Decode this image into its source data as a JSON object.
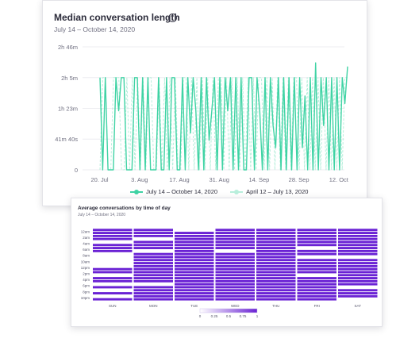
{
  "main_card": {
    "title": "Median conversation length",
    "subtitle": "July 14 – October 14, 2020",
    "info_icon": "info-icon"
  },
  "heat_card": {
    "title": "Average conversations by time of day",
    "subtitle": "July 14 – October 14, 2020"
  },
  "chart_data": [
    {
      "type": "line",
      "title": "Median conversation length",
      "subtitle": "July 14 – October 14, 2020",
      "x_tick_labels": [
        "20. Jul",
        "3. Aug",
        "17. Aug",
        "31. Aug",
        "14. Sep",
        "28. Sep",
        "12. Oct"
      ],
      "y_tick_labels": [
        "0",
        "41m 40s",
        "1h 23m",
        "2h 5m",
        "2h 46m"
      ],
      "y_tick_values_min": [
        0,
        41.67,
        83.33,
        125,
        166.67
      ],
      "ylim_min": [
        0,
        166.67
      ],
      "x_range": [
        "2020-07-14",
        "2020-10-14"
      ],
      "grid": true,
      "legend_position": "bottom",
      "series": [
        {
          "name": "July 14 – October 14, 2020",
          "color": "#3fd3a4",
          "dash": "solid",
          "y_min": [
            125,
            0,
            125,
            0,
            0,
            0,
            125,
            80,
            125,
            125,
            0,
            0,
            0,
            125,
            125,
            0,
            125,
            0,
            125,
            0,
            0,
            0,
            125,
            0,
            0,
            125,
            0,
            125,
            125,
            0,
            0,
            125,
            0,
            125,
            50,
            125,
            80,
            0,
            125,
            0,
            125,
            40,
            80,
            125,
            0,
            125,
            0,
            125,
            80,
            125,
            0,
            125,
            0,
            125,
            0,
            0,
            125,
            125,
            0,
            125,
            80,
            0,
            125,
            0,
            125,
            60,
            30,
            125,
            0,
            125,
            0,
            125,
            0,
            125,
            0,
            125,
            30,
            100,
            0,
            125,
            0,
            145,
            0,
            125,
            60,
            125,
            0,
            125,
            0,
            125,
            0,
            125,
            90,
            140
          ]
        },
        {
          "name": "April 12 – July 13, 2020",
          "color": "#b8efdc",
          "dash": "dashed",
          "y_min": [
            0,
            125,
            125,
            0,
            0,
            125,
            125,
            125,
            0,
            0,
            125,
            0,
            125,
            0,
            125,
            0,
            125,
            0,
            125,
            125,
            0,
            0,
            125,
            0,
            125,
            0,
            125,
            0,
            125,
            0,
            0,
            125,
            125,
            0,
            125,
            0,
            125,
            0,
            125,
            0,
            125,
            0,
            125,
            0,
            125,
            125,
            0,
            125,
            0,
            125,
            0,
            125,
            0,
            125,
            0,
            125,
            0,
            125,
            0,
            125,
            125,
            0,
            125,
            0,
            125,
            0,
            125,
            0,
            125,
            0,
            125,
            0,
            125,
            125,
            0,
            125,
            0,
            125,
            0,
            125,
            0,
            125,
            0,
            125,
            0,
            125,
            0,
            125,
            0,
            125,
            0,
            125,
            125
          ]
        }
      ]
    },
    {
      "type": "heatmap",
      "title": "Average conversations by time of day",
      "subtitle": "July 14 – October 14, 2020",
      "columns": [
        "SUN",
        "MON",
        "TUE",
        "WED",
        "THU",
        "FRI",
        "SAT"
      ],
      "row_tick_labels": [
        "12am",
        "2am",
        "4am",
        "6am",
        "8am",
        "10am",
        "12pm",
        "2pm",
        "4pm",
        "6pm",
        "8pm",
        "10pm"
      ],
      "rows_count": 24,
      "color_scale": {
        "min": 0,
        "max": 1,
        "ticks": [
          "0",
          "0.25",
          "0.5",
          "0.75",
          "1"
        ],
        "low_color": "#ffffff",
        "high_color": "#6a22d4"
      },
      "values": [
        [
          1,
          1,
          0,
          1,
          1,
          1,
          1
        ],
        [
          1,
          1,
          1,
          1,
          1,
          1,
          1
        ],
        [
          1,
          1,
          1,
          1,
          1,
          1,
          1
        ],
        [
          1,
          0,
          1,
          1,
          1,
          1,
          1
        ],
        [
          0,
          1,
          1,
          1,
          1,
          1,
          1
        ],
        [
          1,
          1,
          1,
          1,
          1,
          1,
          1
        ],
        [
          1,
          1,
          1,
          1,
          1,
          0,
          1
        ],
        [
          1,
          0,
          1,
          0,
          1,
          1,
          1
        ],
        [
          0,
          1,
          1,
          1,
          1,
          1,
          1
        ],
        [
          0,
          1,
          1,
          1,
          1,
          0,
          0
        ],
        [
          0,
          1,
          1,
          1,
          1,
          1,
          1
        ],
        [
          0,
          1,
          1,
          1,
          1,
          1,
          1
        ],
        [
          0,
          1,
          1,
          1,
          1,
          1,
          1
        ],
        [
          1,
          1,
          1,
          1,
          1,
          1,
          1
        ],
        [
          1,
          1,
          1,
          1,
          1,
          1,
          1
        ],
        [
          0,
          1,
          1,
          1,
          1,
          0,
          1
        ],
        [
          1,
          1,
          1,
          1,
          1,
          1,
          1
        ],
        [
          1,
          1,
          1,
          1,
          1,
          1,
          1
        ],
        [
          0,
          0,
          1,
          1,
          1,
          1,
          1
        ],
        [
          1,
          1,
          1,
          1,
          1,
          1,
          0
        ],
        [
          0,
          1,
          1,
          1,
          1,
          1,
          1
        ],
        [
          1,
          1,
          1,
          1,
          1,
          1,
          1
        ],
        [
          0,
          1,
          1,
          1,
          1,
          1,
          1
        ],
        [
          1,
          1,
          1,
          1,
          1,
          1,
          0
        ]
      ]
    }
  ]
}
